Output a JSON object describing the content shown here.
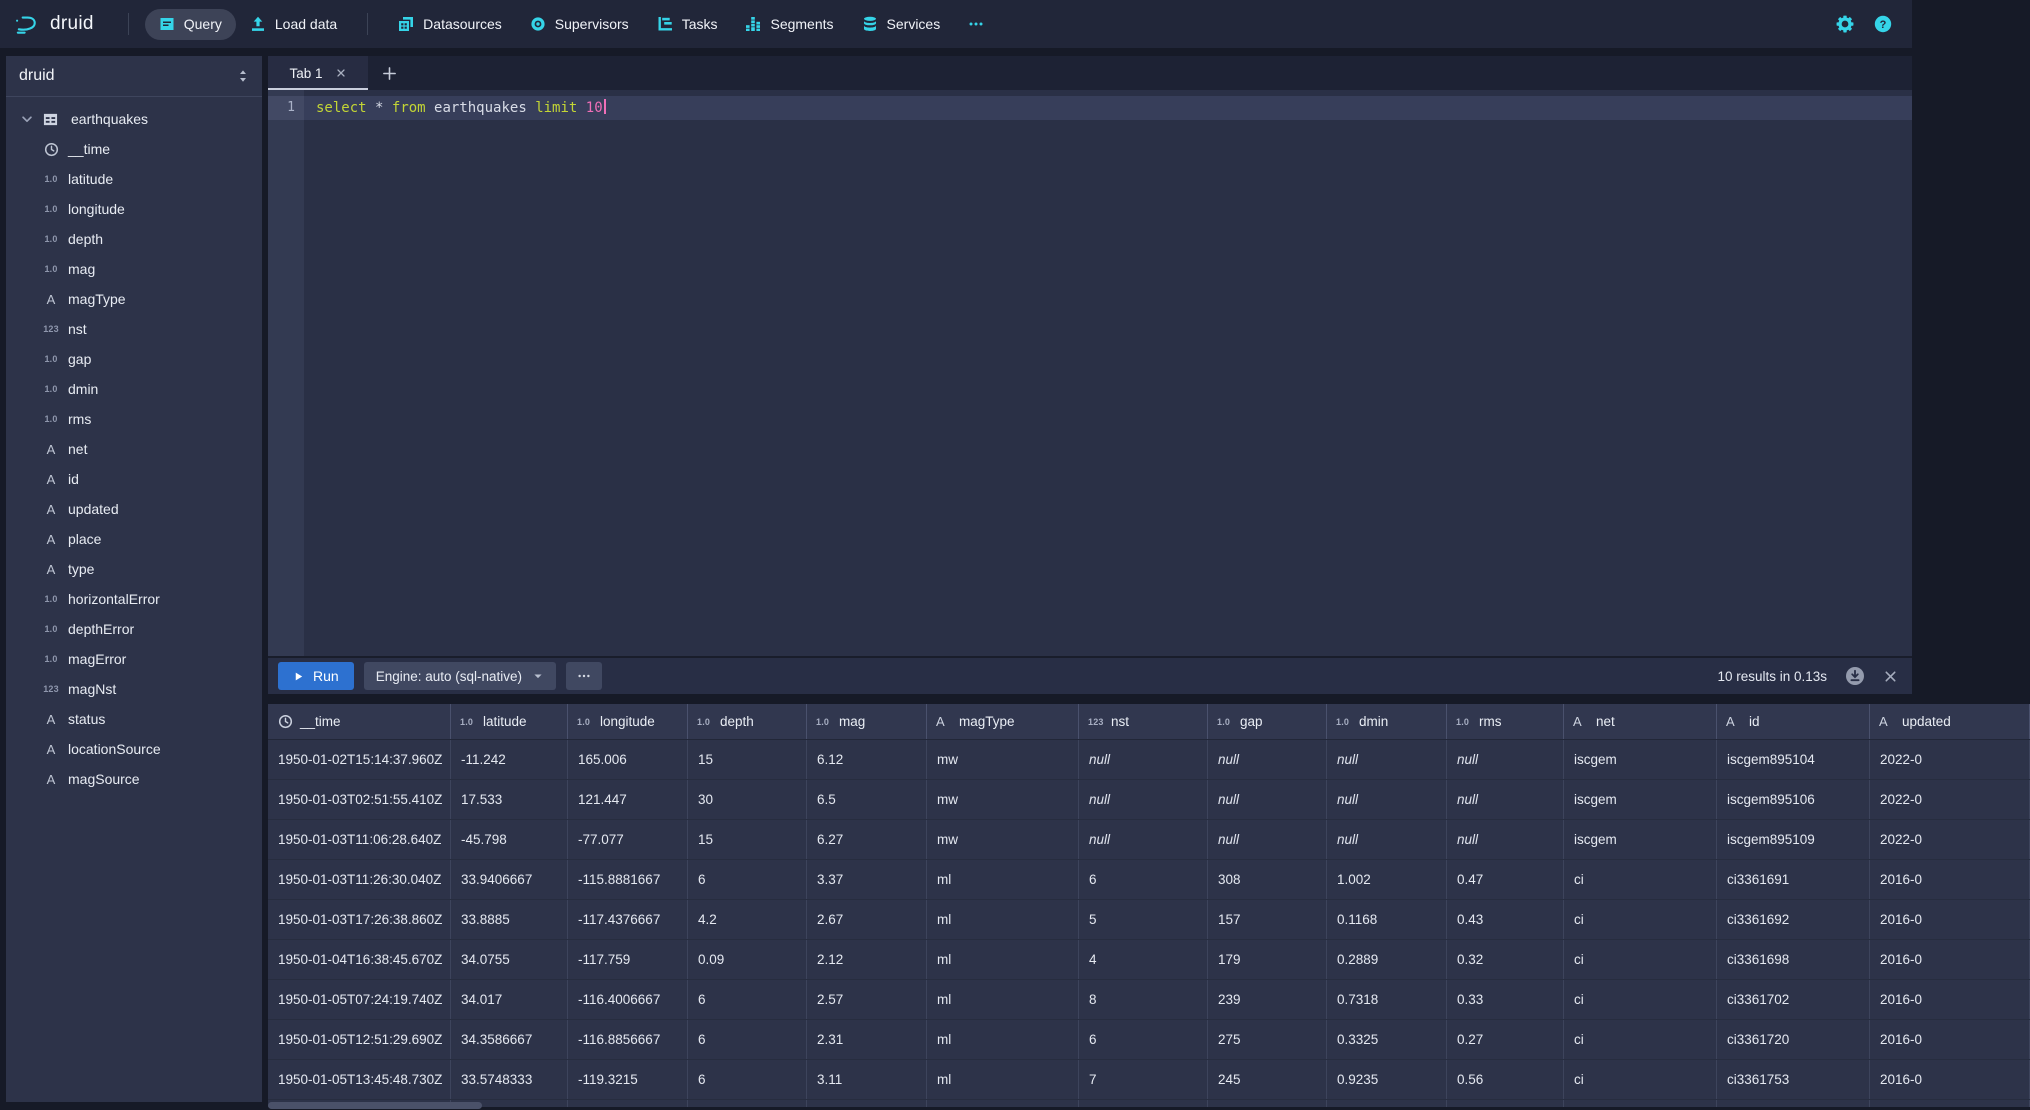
{
  "colors": {
    "accent": "#35d4e8",
    "run_button": "#2d71d0",
    "sql_keyword": "#c3d535",
    "sql_number": "#f06fb8"
  },
  "navbar": {
    "brand": "druid",
    "items": [
      {
        "label": "Query",
        "icon": "query",
        "active": true
      },
      {
        "label": "Load data",
        "icon": "load-data",
        "active": false,
        "divider_after": true
      },
      {
        "label": "Datasources",
        "icon": "datasources",
        "active": false
      },
      {
        "label": "Supervisors",
        "icon": "supervisors",
        "active": false
      },
      {
        "label": "Tasks",
        "icon": "tasks",
        "active": false
      },
      {
        "label": "Segments",
        "icon": "segments",
        "active": false
      },
      {
        "label": "Services",
        "icon": "services",
        "active": false
      },
      {
        "label": "",
        "icon": "more",
        "active": false
      }
    ]
  },
  "sidebar": {
    "schema": "druid",
    "table": {
      "name": "earthquakes"
    },
    "columns": [
      {
        "name": "__time",
        "type": "time"
      },
      {
        "name": "latitude",
        "type": "float"
      },
      {
        "name": "longitude",
        "type": "float"
      },
      {
        "name": "depth",
        "type": "float"
      },
      {
        "name": "mag",
        "type": "float"
      },
      {
        "name": "magType",
        "type": "string"
      },
      {
        "name": "nst",
        "type": "int"
      },
      {
        "name": "gap",
        "type": "float"
      },
      {
        "name": "dmin",
        "type": "float"
      },
      {
        "name": "rms",
        "type": "float"
      },
      {
        "name": "net",
        "type": "string"
      },
      {
        "name": "id",
        "type": "string"
      },
      {
        "name": "updated",
        "type": "string"
      },
      {
        "name": "place",
        "type": "string"
      },
      {
        "name": "type",
        "type": "string"
      },
      {
        "name": "horizontalError",
        "type": "float"
      },
      {
        "name": "depthError",
        "type": "float"
      },
      {
        "name": "magError",
        "type": "float"
      },
      {
        "name": "magNst",
        "type": "int"
      },
      {
        "name": "status",
        "type": "string"
      },
      {
        "name": "locationSource",
        "type": "string"
      },
      {
        "name": "magSource",
        "type": "string"
      }
    ]
  },
  "type_glyphs": {
    "float": "1.0",
    "int": "123",
    "string": "A"
  },
  "tabs": {
    "active_label": "Tab 1"
  },
  "editor": {
    "line_number": "1",
    "tokens": [
      {
        "text": "select",
        "type": "keyword"
      },
      {
        "text": " ",
        "type": "plain"
      },
      {
        "text": "*",
        "type": "plain"
      },
      {
        "text": " ",
        "type": "plain"
      },
      {
        "text": "from",
        "type": "keyword"
      },
      {
        "text": " earthquakes ",
        "type": "plain"
      },
      {
        "text": "limit",
        "type": "keyword"
      },
      {
        "text": " ",
        "type": "plain"
      },
      {
        "text": "10",
        "type": "number"
      }
    ]
  },
  "run_bar": {
    "run_label": "Run",
    "engine_label": "Engine: auto (sql-native)",
    "status": "10 results in 0.13s"
  },
  "results": {
    "columns": [
      {
        "name": "__time",
        "type": "time",
        "width": 183
      },
      {
        "name": "latitude",
        "type": "float",
        "width": 117
      },
      {
        "name": "longitude",
        "type": "float",
        "width": 120
      },
      {
        "name": "depth",
        "type": "float",
        "width": 119
      },
      {
        "name": "mag",
        "type": "float",
        "width": 120
      },
      {
        "name": "magType",
        "type": "string",
        "width": 152
      },
      {
        "name": "nst",
        "type": "int",
        "width": 129
      },
      {
        "name": "gap",
        "type": "float",
        "width": 119
      },
      {
        "name": "dmin",
        "type": "float",
        "width": 120
      },
      {
        "name": "rms",
        "type": "float",
        "width": 117
      },
      {
        "name": "net",
        "type": "string",
        "width": 153
      },
      {
        "name": "id",
        "type": "string",
        "width": 153
      },
      {
        "name": "updated",
        "type": "string",
        "width": 160
      }
    ],
    "rows": [
      [
        "1950-01-02T15:14:37.960Z",
        "-11.242",
        "165.006",
        "15",
        "6.12",
        "mw",
        "null",
        "null",
        "null",
        "null",
        "iscgem",
        "iscgem895104",
        "2022-0"
      ],
      [
        "1950-01-03T02:51:55.410Z",
        "17.533",
        "121.447",
        "30",
        "6.5",
        "mw",
        "null",
        "null",
        "null",
        "null",
        "iscgem",
        "iscgem895106",
        "2022-0"
      ],
      [
        "1950-01-03T11:06:28.640Z",
        "-45.798",
        "-77.077",
        "15",
        "6.27",
        "mw",
        "null",
        "null",
        "null",
        "null",
        "iscgem",
        "iscgem895109",
        "2022-0"
      ],
      [
        "1950-01-03T11:26:30.040Z",
        "33.9406667",
        "-115.8881667",
        "6",
        "3.37",
        "ml",
        "6",
        "308",
        "1.002",
        "0.47",
        "ci",
        "ci3361691",
        "2016-0"
      ],
      [
        "1950-01-03T17:26:38.860Z",
        "33.8885",
        "-117.4376667",
        "4.2",
        "2.67",
        "ml",
        "5",
        "157",
        "0.1168",
        "0.43",
        "ci",
        "ci3361692",
        "2016-0"
      ],
      [
        "1950-01-04T16:38:45.670Z",
        "34.0755",
        "-117.759",
        "0.09",
        "2.12",
        "ml",
        "4",
        "179",
        "0.2889",
        "0.32",
        "ci",
        "ci3361698",
        "2016-0"
      ],
      [
        "1950-01-05T07:24:19.740Z",
        "34.017",
        "-116.4006667",
        "6",
        "2.57",
        "ml",
        "8",
        "239",
        "0.7318",
        "0.33",
        "ci",
        "ci3361702",
        "2016-0"
      ],
      [
        "1950-01-05T12:51:29.690Z",
        "34.3586667",
        "-116.8856667",
        "6",
        "2.31",
        "ml",
        "6",
        "275",
        "0.3325",
        "0.27",
        "ci",
        "ci3361720",
        "2016-0"
      ],
      [
        "1950-01-05T13:45:48.730Z",
        "33.5748333",
        "-119.3215",
        "6",
        "3.11",
        "ml",
        "7",
        "245",
        "0.9235",
        "0.56",
        "ci",
        "ci3361753",
        "2016-0"
      ]
    ]
  }
}
